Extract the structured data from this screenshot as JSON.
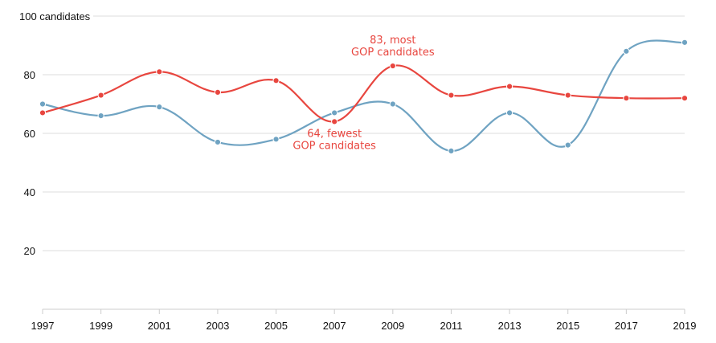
{
  "chart_data": {
    "type": "line",
    "title": "",
    "xlabel": "",
    "ylabel": "candidates",
    "y_top_label": "100 candidates",
    "ylim": [
      0,
      100
    ],
    "yticks": [
      20,
      40,
      60,
      80,
      100
    ],
    "ytick_labels": [
      "20",
      "40",
      "60",
      "80",
      "100 candidates"
    ],
    "x": [
      1997,
      1999,
      2001,
      2003,
      2005,
      2007,
      2009,
      2011,
      2013,
      2015,
      2017,
      2019
    ],
    "xtick_labels": [
      "1997",
      "1999",
      "2001",
      "2003",
      "2005",
      "2007",
      "2009",
      "2011",
      "2013",
      "2015",
      "2017",
      "2019"
    ],
    "grid": true,
    "series": [
      {
        "id": "blue",
        "color": "#6fa3c2",
        "values": [
          70,
          66,
          69,
          57,
          58,
          67,
          70,
          54,
          67,
          56,
          88,
          91
        ]
      },
      {
        "id": "gop",
        "color": "#e8463f",
        "values": [
          67,
          73,
          81,
          74,
          78,
          64,
          83,
          73,
          76,
          73,
          72,
          72
        ]
      }
    ],
    "annotations": [
      {
        "lines": [
          "83, most",
          "GOP candidates"
        ],
        "x": 2009,
        "y": 83,
        "position": "above"
      },
      {
        "lines": [
          "64, fewest",
          "GOP candidates"
        ],
        "x": 2007,
        "y": 64,
        "position": "below"
      }
    ]
  }
}
